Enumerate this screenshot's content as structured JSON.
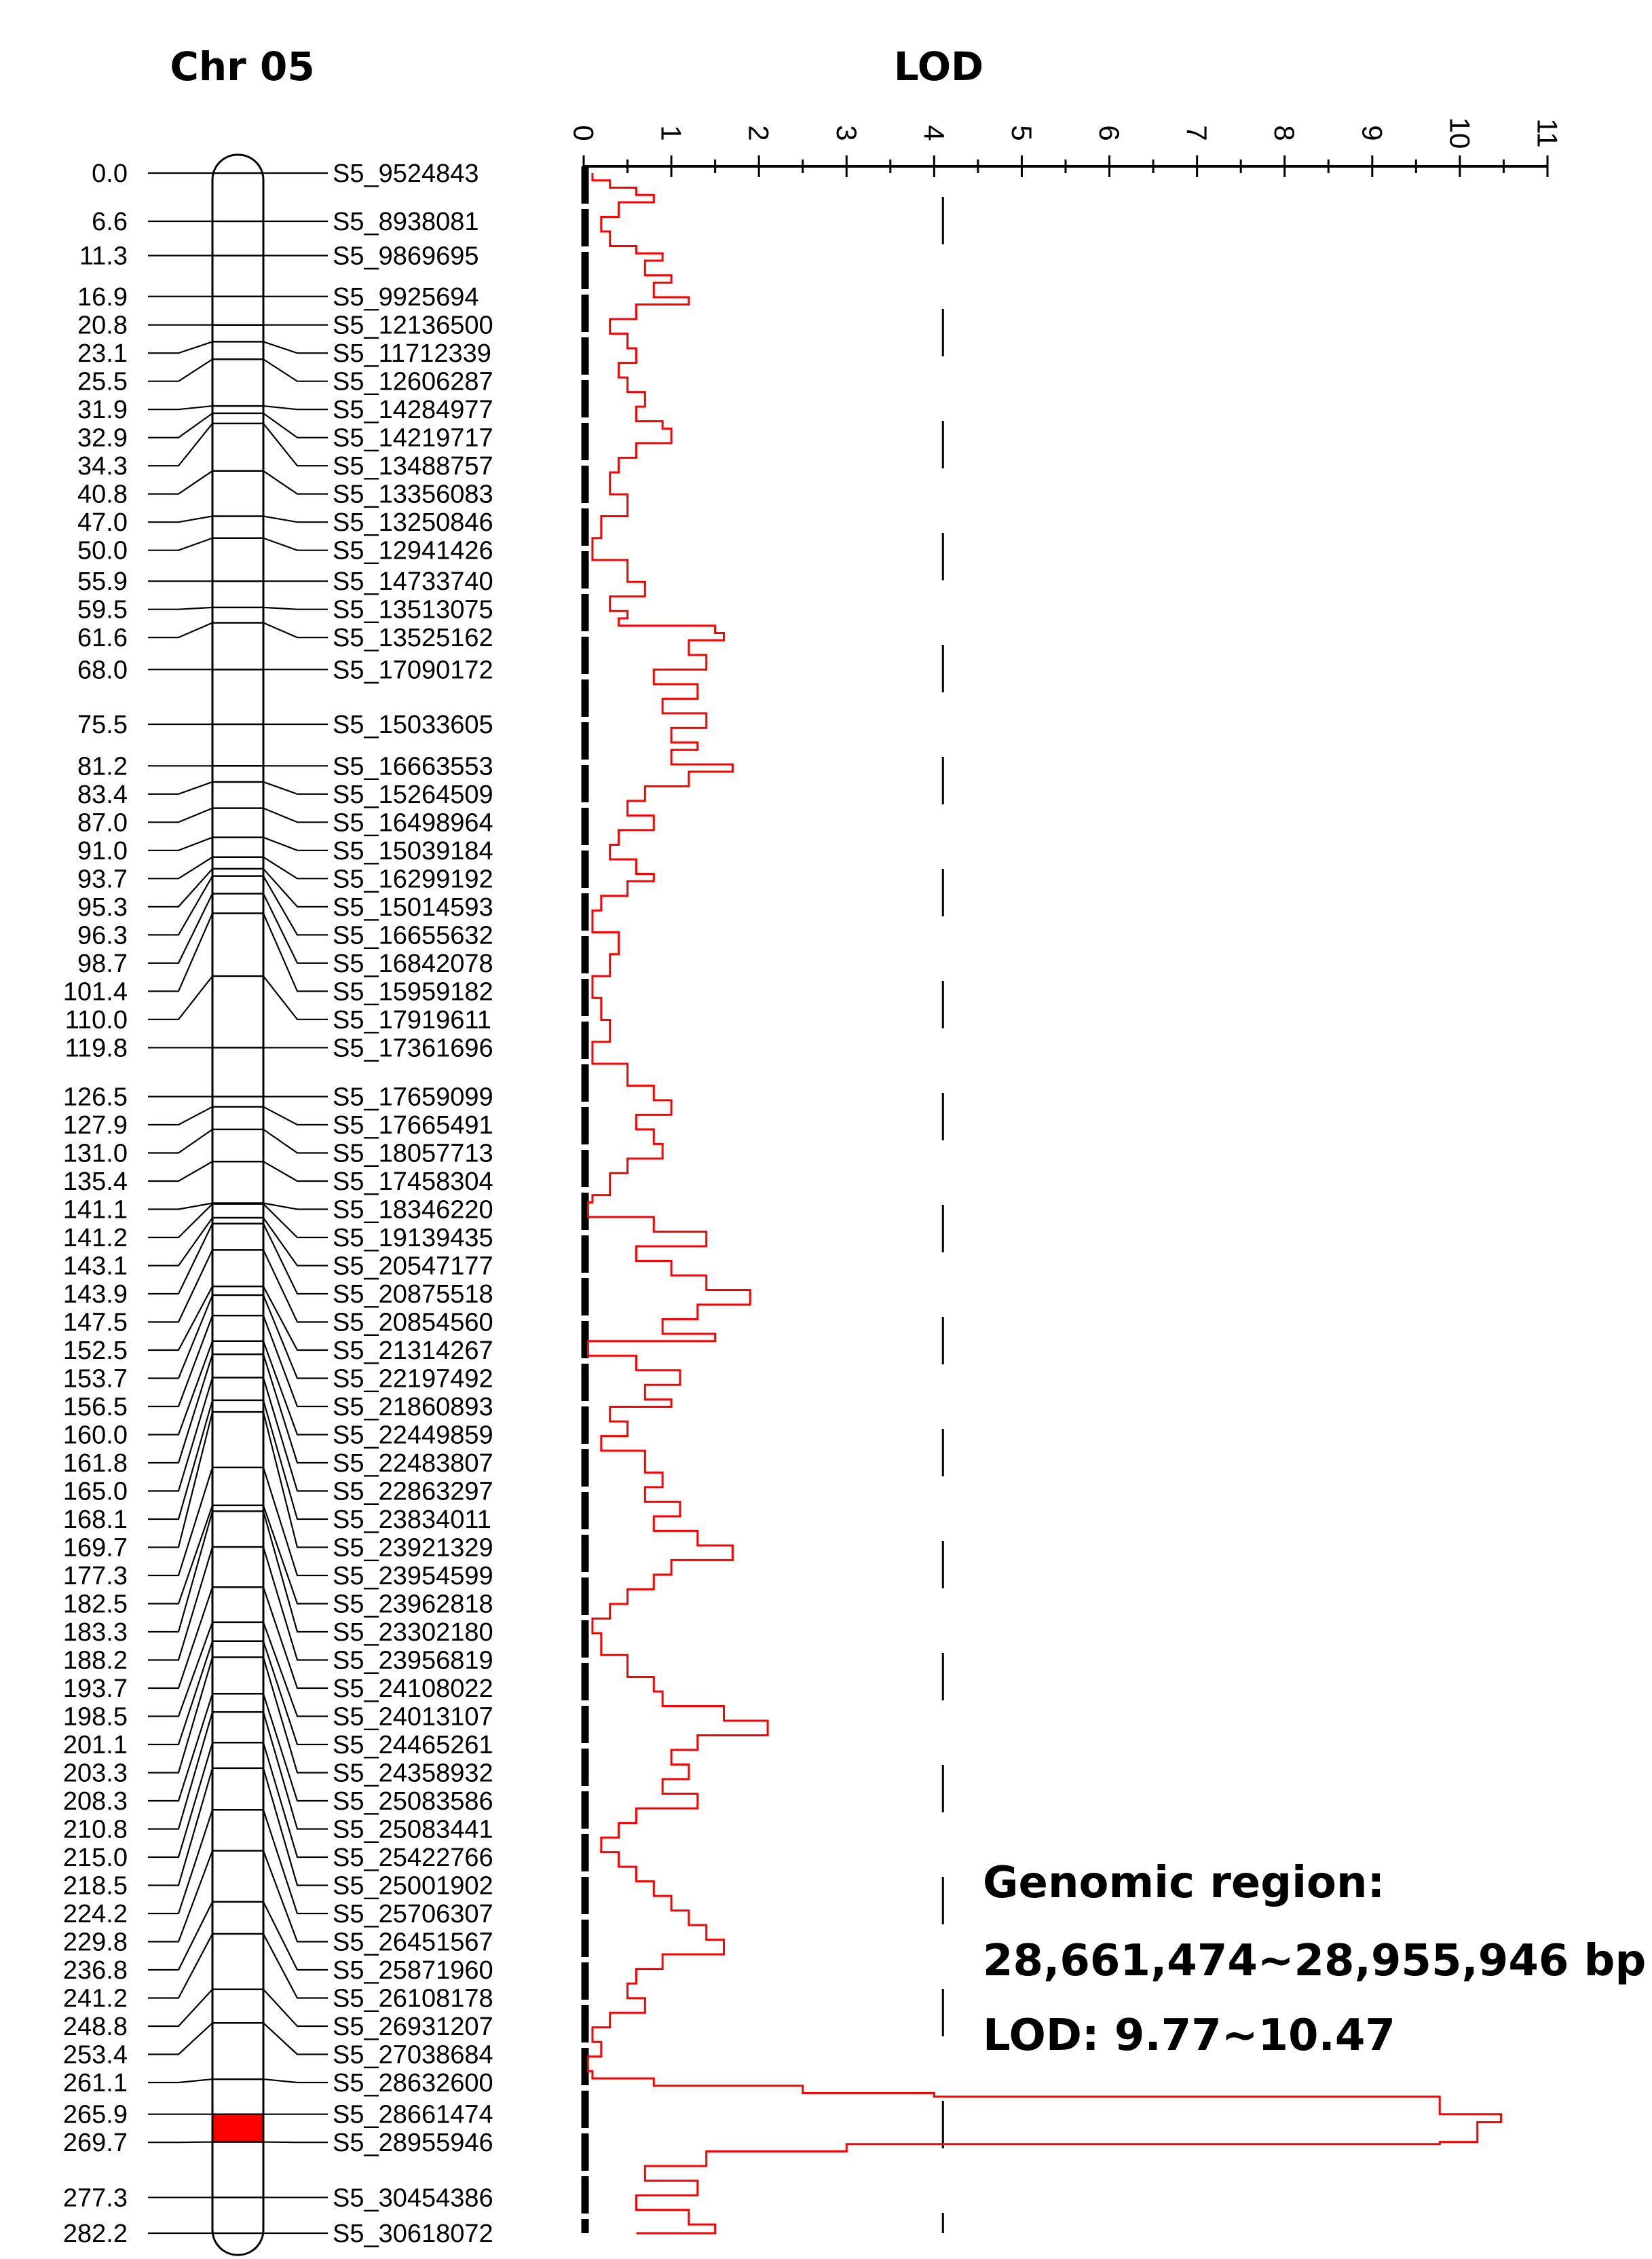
{
  "chart_data": {
    "type": "line",
    "chromosome_title": "Chr 05",
    "lod_axis_title": "LOD",
    "lod_ticks": [
      "0",
      "1",
      "2",
      "3",
      "4",
      "5",
      "6",
      "7",
      "8",
      "9",
      "10",
      "11"
    ],
    "lod_range": [
      0,
      11
    ],
    "threshold_lod": 4.1,
    "map_range_cM": [
      0,
      282.2
    ],
    "qtl_interval_cM": [
      265.9,
      269.7
    ],
    "qtl_color": "#ff0000",
    "curve_color": "#ff0000",
    "markers": [
      {
        "pos": "0.0",
        "name": "S5_9524843"
      },
      {
        "pos": "6.6",
        "name": "S5_8938081"
      },
      {
        "pos": "11.3",
        "name": "S5_9869695"
      },
      {
        "pos": "16.9",
        "name": "S5_9925694"
      },
      {
        "pos": "20.8",
        "name": "S5_12136500"
      },
      {
        "pos": "23.1",
        "name": "S5_11712339"
      },
      {
        "pos": "25.5",
        "name": "S5_12606287"
      },
      {
        "pos": "31.9",
        "name": "S5_14284977"
      },
      {
        "pos": "32.9",
        "name": "S5_14219717"
      },
      {
        "pos": "34.3",
        "name": "S5_13488757"
      },
      {
        "pos": "40.8",
        "name": "S5_13356083"
      },
      {
        "pos": "47.0",
        "name": "S5_13250846"
      },
      {
        "pos": "50.0",
        "name": "S5_12941426"
      },
      {
        "pos": "55.9",
        "name": "S5_14733740"
      },
      {
        "pos": "59.5",
        "name": "S5_13513075"
      },
      {
        "pos": "61.6",
        "name": "S5_13525162"
      },
      {
        "pos": "68.0",
        "name": "S5_17090172"
      },
      {
        "pos": "75.5",
        "name": "S5_15033605"
      },
      {
        "pos": "81.2",
        "name": "S5_16663553"
      },
      {
        "pos": "83.4",
        "name": "S5_15264509"
      },
      {
        "pos": "87.0",
        "name": "S5_16498964"
      },
      {
        "pos": "91.0",
        "name": "S5_15039184"
      },
      {
        "pos": "93.7",
        "name": "S5_16299192"
      },
      {
        "pos": "95.3",
        "name": "S5_15014593"
      },
      {
        "pos": "96.3",
        "name": "S5_16655632"
      },
      {
        "pos": "98.7",
        "name": "S5_16842078"
      },
      {
        "pos": "101.4",
        "name": "S5_15959182"
      },
      {
        "pos": "110.0",
        "name": "S5_17919611"
      },
      {
        "pos": "119.8",
        "name": "S5_17361696"
      },
      {
        "pos": "126.5",
        "name": "S5_17659099"
      },
      {
        "pos": "127.9",
        "name": "S5_17665491"
      },
      {
        "pos": "131.0",
        "name": "S5_18057713"
      },
      {
        "pos": "135.4",
        "name": "S5_17458304"
      },
      {
        "pos": "141.1",
        "name": "S5_18346220"
      },
      {
        "pos": "141.2",
        "name": "S5_19139435"
      },
      {
        "pos": "143.1",
        "name": "S5_20547177"
      },
      {
        "pos": "143.9",
        "name": "S5_20875518"
      },
      {
        "pos": "147.5",
        "name": "S5_20854560"
      },
      {
        "pos": "152.5",
        "name": "S5_21314267"
      },
      {
        "pos": "153.7",
        "name": "S5_22197492"
      },
      {
        "pos": "156.5",
        "name": "S5_21860893"
      },
      {
        "pos": "160.0",
        "name": "S5_22449859"
      },
      {
        "pos": "161.8",
        "name": "S5_22483807"
      },
      {
        "pos": "165.0",
        "name": "S5_22863297"
      },
      {
        "pos": "168.1",
        "name": "S5_23834011"
      },
      {
        "pos": "169.7",
        "name": "S5_23921329"
      },
      {
        "pos": "177.3",
        "name": "S5_23954599"
      },
      {
        "pos": "182.5",
        "name": "S5_23962818"
      },
      {
        "pos": "183.3",
        "name": "S5_23302180"
      },
      {
        "pos": "188.2",
        "name": "S5_23956819"
      },
      {
        "pos": "193.7",
        "name": "S5_24108022"
      },
      {
        "pos": "198.5",
        "name": "S5_24013107"
      },
      {
        "pos": "201.1",
        "name": "S5_24465261"
      },
      {
        "pos": "203.3",
        "name": "S5_24358932"
      },
      {
        "pos": "208.3",
        "name": "S5_25083586"
      },
      {
        "pos": "210.8",
        "name": "S5_25083441"
      },
      {
        "pos": "215.0",
        "name": "S5_25422766"
      },
      {
        "pos": "218.5",
        "name": "S5_25001902"
      },
      {
        "pos": "224.2",
        "name": "S5_25706307"
      },
      {
        "pos": "229.8",
        "name": "S5_26451567"
      },
      {
        "pos": "236.8",
        "name": "S5_25871960"
      },
      {
        "pos": "241.2",
        "name": "S5_26108178"
      },
      {
        "pos": "248.8",
        "name": "S5_26931207"
      },
      {
        "pos": "253.4",
        "name": "S5_27038684"
      },
      {
        "pos": "261.1",
        "name": "S5_28632600"
      },
      {
        "pos": "265.9",
        "name": "S5_28661474"
      },
      {
        "pos": "269.7",
        "name": "S5_28955946"
      },
      {
        "pos": "277.3",
        "name": "S5_30454386"
      },
      {
        "pos": "282.2",
        "name": "S5_30618072"
      }
    ],
    "lod_profile": [
      [
        0,
        0.1
      ],
      [
        1,
        0.3
      ],
      [
        2,
        0.6
      ],
      [
        3,
        0.8
      ],
      [
        4,
        0.4
      ],
      [
        6,
        0.2
      ],
      [
        8,
        0.3
      ],
      [
        10,
        0.6
      ],
      [
        11,
        0.9
      ],
      [
        12,
        0.7
      ],
      [
        14,
        1.0
      ],
      [
        15,
        0.8
      ],
      [
        17,
        1.2
      ],
      [
        18,
        0.6
      ],
      [
        20,
        0.3
      ],
      [
        22,
        0.5
      ],
      [
        24,
        0.6
      ],
      [
        26,
        0.4
      ],
      [
        28,
        0.5
      ],
      [
        30,
        0.7
      ],
      [
        32,
        0.6
      ],
      [
        34,
        0.9
      ],
      [
        35,
        1.0
      ],
      [
        37,
        0.6
      ],
      [
        39,
        0.4
      ],
      [
        41,
        0.3
      ],
      [
        44,
        0.5
      ],
      [
        47,
        0.2
      ],
      [
        50,
        0.1
      ],
      [
        53,
        0.5
      ],
      [
        56,
        0.7
      ],
      [
        58,
        0.3
      ],
      [
        60,
        0.5
      ],
      [
        61,
        0.4
      ],
      [
        62,
        1.5
      ],
      [
        63,
        1.6
      ],
      [
        64,
        1.2
      ],
      [
        66,
        1.4
      ],
      [
        68,
        0.8
      ],
      [
        70,
        1.3
      ],
      [
        72,
        0.9
      ],
      [
        74,
        1.4
      ],
      [
        76,
        1.0
      ],
      [
        78,
        1.3
      ],
      [
        79,
        1.0
      ],
      [
        81,
        1.7
      ],
      [
        82,
        1.2
      ],
      [
        84,
        0.7
      ],
      [
        86,
        0.5
      ],
      [
        88,
        0.8
      ],
      [
        90,
        0.4
      ],
      [
        92,
        0.3
      ],
      [
        94,
        0.6
      ],
      [
        96,
        0.8
      ],
      [
        97,
        0.5
      ],
      [
        99,
        0.2
      ],
      [
        101,
        0.1
      ],
      [
        104,
        0.4
      ],
      [
        107,
        0.3
      ],
      [
        110,
        0.1
      ],
      [
        113,
        0.2
      ],
      [
        116,
        0.3
      ],
      [
        119,
        0.1
      ],
      [
        122,
        0.5
      ],
      [
        125,
        0.8
      ],
      [
        127,
        1.0
      ],
      [
        129,
        0.6
      ],
      [
        131,
        0.8
      ],
      [
        133,
        0.9
      ],
      [
        135,
        0.5
      ],
      [
        137,
        0.3
      ],
      [
        140,
        0.1
      ],
      [
        141,
        0.05
      ],
      [
        143,
        0.8
      ],
      [
        145,
        1.4
      ],
      [
        147,
        0.6
      ],
      [
        149,
        1.0
      ],
      [
        151,
        1.4
      ],
      [
        153,
        1.9
      ],
      [
        155,
        1.3
      ],
      [
        157,
        0.9
      ],
      [
        159,
        1.5
      ],
      [
        160,
        0.05
      ],
      [
        162,
        0.6
      ],
      [
        164,
        1.1
      ],
      [
        166,
        0.7
      ],
      [
        168,
        1.0
      ],
      [
        169,
        0.3
      ],
      [
        171,
        0.5
      ],
      [
        173,
        0.2
      ],
      [
        175,
        0.7
      ],
      [
        178,
        0.9
      ],
      [
        180,
        0.7
      ],
      [
        182,
        1.1
      ],
      [
        184,
        0.8
      ],
      [
        186,
        1.3
      ],
      [
        188,
        1.7
      ],
      [
        190,
        1.0
      ],
      [
        192,
        0.8
      ],
      [
        194,
        0.5
      ],
      [
        196,
        0.3
      ],
      [
        198,
        0.1
      ],
      [
        200,
        0.2
      ],
      [
        203,
        0.5
      ],
      [
        206,
        0.8
      ],
      [
        208,
        0.9
      ],
      [
        210,
        1.6
      ],
      [
        212,
        2.1
      ],
      [
        214,
        1.3
      ],
      [
        216,
        1.0
      ],
      [
        218,
        1.2
      ],
      [
        220,
        0.9
      ],
      [
        222,
        1.3
      ],
      [
        224,
        0.6
      ],
      [
        226,
        0.4
      ],
      [
        228,
        0.2
      ],
      [
        230,
        0.4
      ],
      [
        232,
        0.6
      ],
      [
        234,
        0.8
      ],
      [
        236,
        1.0
      ],
      [
        238,
        1.2
      ],
      [
        240,
        1.4
      ],
      [
        242,
        1.6
      ],
      [
        244,
        0.9
      ],
      [
        246,
        0.6
      ],
      [
        248,
        0.5
      ],
      [
        250,
        0.7
      ],
      [
        252,
        0.3
      ],
      [
        254,
        0.1
      ],
      [
        256,
        0.2
      ],
      [
        258,
        0.05
      ],
      [
        260,
        0.1
      ],
      [
        261,
        0.8
      ],
      [
        262,
        2.5
      ],
      [
        263,
        4.0
      ],
      [
        263.5,
        9.77
      ],
      [
        265.9,
        10.47
      ],
      [
        267,
        10.2
      ],
      [
        269.7,
        9.77
      ],
      [
        270,
        3.0
      ],
      [
        271,
        1.4
      ],
      [
        273,
        0.7
      ],
      [
        275,
        1.3
      ],
      [
        277,
        0.6
      ],
      [
        279,
        1.2
      ],
      [
        281,
        1.5
      ],
      [
        282.2,
        0.6
      ]
    ],
    "annotation": [
      "Genomic region:",
      "28,661,474~28,955,946 bp",
      "LOD: 9.77~10.47"
    ]
  }
}
